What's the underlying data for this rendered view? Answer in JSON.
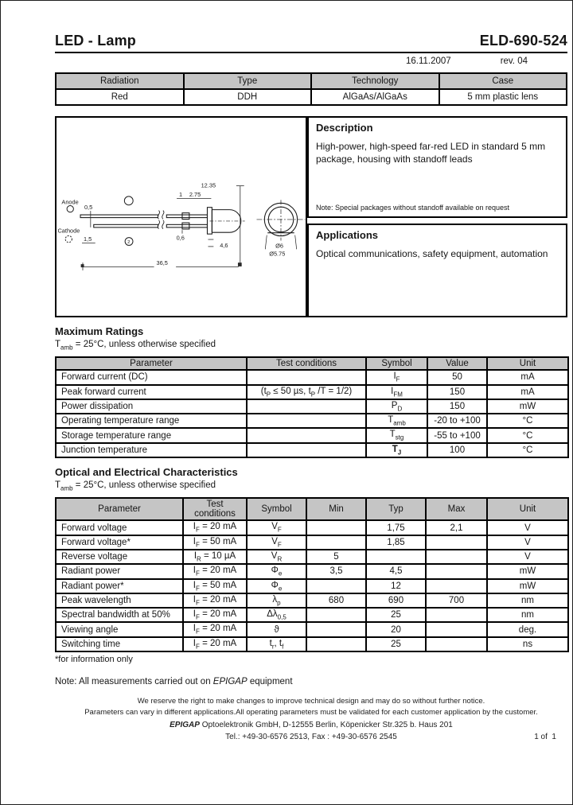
{
  "header": {
    "product_family": "LED - Lamp",
    "part_number": "ELD-690-524",
    "date": "16.11.2007",
    "revision": "rev. 04"
  },
  "info_table": {
    "headers": [
      "Radiation",
      "Type",
      "Technology",
      "Case"
    ],
    "row": {
      "radiation": "Red",
      "type": "DDH",
      "technology": "AlGaAs/AlGaAs",
      "case": "5 mm plastic lens"
    }
  },
  "description": {
    "title": "Description",
    "body": "High-power, high-speed far-red LED in standard 5 mm package, housing with standoff leads",
    "note": "Note: Special packages without standoff available on request"
  },
  "applications": {
    "title": "Applications",
    "body": "Optical communications, safety equipment, automation"
  },
  "diagram": {
    "anode_label": "Anode",
    "cathode_label": "Cathode",
    "marker_2": "2",
    "dims": {
      "lead_inset": "0,5",
      "cathode_inset": "1,5",
      "lead_width": "0,6",
      "standoff": "1",
      "pitch": "2.75",
      "height": "12.35",
      "body": "4,6",
      "lead_length": "36,5",
      "dia_outer": "Ø6",
      "dia_body": "Ø5.75"
    }
  },
  "max_ratings": {
    "title": "Maximum Ratings",
    "condition": [
      {
        "t": "T"
      },
      {
        "t": "amb",
        "s": 1
      },
      {
        "t": " = 25°C, unless otherwise specified"
      }
    ],
    "headers": [
      "Parameter",
      "Test conditions",
      "Symbol",
      "Value",
      "Unit"
    ],
    "rows": [
      {
        "parameter": "Forward current (DC)",
        "test": "",
        "symbol": [
          {
            "t": "I"
          },
          {
            "t": "F",
            "s": 1
          }
        ],
        "value": "50",
        "unit": "mA"
      },
      {
        "parameter": "Peak forward current",
        "test": [
          {
            "t": "(t"
          },
          {
            "t": "P",
            "s": 1
          },
          {
            "t": " ≤ 50 µs, t"
          },
          {
            "t": "P",
            "s": 1
          },
          {
            "t": " /T = 1/2)"
          }
        ],
        "symbol": [
          {
            "t": "I"
          },
          {
            "t": "FM",
            "s": 1
          }
        ],
        "value": "150",
        "unit": "mA"
      },
      {
        "parameter": "Power dissipation",
        "test": "",
        "symbol": [
          {
            "t": "P"
          },
          {
            "t": "D",
            "s": 1
          }
        ],
        "value": "150",
        "unit": "mW"
      },
      {
        "parameter": "Operating temperature range",
        "test": "",
        "symbol": [
          {
            "t": "T"
          },
          {
            "t": "amb",
            "s": 1
          }
        ],
        "value": "-20 to +100",
        "unit": "°C"
      },
      {
        "parameter": "Storage temperature range",
        "test": "",
        "symbol": [
          {
            "t": "T"
          },
          {
            "t": "stg",
            "s": 1
          }
        ],
        "value": "-55 to +100",
        "unit": "°C"
      },
      {
        "parameter": "Junction temperature",
        "test": "",
        "symbol": [
          {
            "t": "T",
            "b": 1
          },
          {
            "t": "J",
            "s": 1,
            "b": 1
          }
        ],
        "value": "100",
        "unit": "°C"
      }
    ]
  },
  "characteristics": {
    "title": "Optical and Electrical Characteristics",
    "condition": [
      {
        "t": "T"
      },
      {
        "t": "amb",
        "s": 1
      },
      {
        "t": " = 25°C, unless otherwise specified"
      }
    ],
    "headers": [
      "Parameter",
      "Test conditions",
      "Symbol",
      "Min",
      "Typ",
      "Max",
      "Unit"
    ],
    "rows": [
      {
        "parameter": "Forward voltage",
        "test": [
          {
            "t": "I"
          },
          {
            "t": "F",
            "s": 1
          },
          {
            "t": " = 20 mA"
          }
        ],
        "symbol": [
          {
            "t": "V"
          },
          {
            "t": "F",
            "s": 1
          }
        ],
        "min": "",
        "typ": "1,75",
        "max": "2,1",
        "unit": "V"
      },
      {
        "parameter": "Forward voltage*",
        "test": [
          {
            "t": "I"
          },
          {
            "t": "F",
            "s": 1
          },
          {
            "t": " = 50 mA"
          }
        ],
        "symbol": [
          {
            "t": "V"
          },
          {
            "t": "F",
            "s": 1
          }
        ],
        "min": "",
        "typ": "1,85",
        "max": "",
        "unit": "V"
      },
      {
        "parameter": "Reverse voltage",
        "test": [
          {
            "t": "I"
          },
          {
            "t": "R",
            "s": 1
          },
          {
            "t": " = 10 µA"
          }
        ],
        "symbol": [
          {
            "t": "V"
          },
          {
            "t": "R",
            "s": 1
          }
        ],
        "min": "5",
        "typ": "",
        "max": "",
        "unit": "V"
      },
      {
        "parameter": "Radiant power",
        "test": [
          {
            "t": "I"
          },
          {
            "t": "F",
            "s": 1
          },
          {
            "t": " = 20 mA"
          }
        ],
        "symbol": [
          {
            "t": "Φ"
          },
          {
            "t": "e",
            "s": 1
          }
        ],
        "min": "3,5",
        "typ": "4,5",
        "max": "",
        "unit": "mW"
      },
      {
        "parameter": "Radiant power*",
        "test": [
          {
            "t": "I"
          },
          {
            "t": "F",
            "s": 1
          },
          {
            "t": " = 50 mA"
          }
        ],
        "symbol": [
          {
            "t": "Φ"
          },
          {
            "t": "e",
            "s": 1
          }
        ],
        "min": "",
        "typ": "12",
        "max": "",
        "unit": "mW"
      },
      {
        "parameter": "Peak wavelength",
        "test": [
          {
            "t": "I"
          },
          {
            "t": "F",
            "s": 1
          },
          {
            "t": " = 20 mA"
          }
        ],
        "symbol": [
          {
            "t": "λ"
          },
          {
            "t": "p",
            "s": 1
          }
        ],
        "min": "680",
        "typ": "690",
        "max": "700",
        "unit": "nm"
      },
      {
        "parameter": "Spectral bandwidth at 50%",
        "test": [
          {
            "t": "I"
          },
          {
            "t": "F",
            "s": 1
          },
          {
            "t": " = 20 mA"
          }
        ],
        "symbol": [
          {
            "t": "Δλ"
          },
          {
            "t": "0,5",
            "s": 1
          }
        ],
        "min": "",
        "typ": "25",
        "max": "",
        "unit": "nm"
      },
      {
        "parameter": "Viewing angle",
        "test": [
          {
            "t": "I"
          },
          {
            "t": "F",
            "s": 1
          },
          {
            "t": " = 20 mA"
          }
        ],
        "symbol": [
          {
            "t": "ϑ"
          }
        ],
        "min": "",
        "typ": "20",
        "max": "",
        "unit": "deg."
      },
      {
        "parameter": "Switching time",
        "test": [
          {
            "t": "I"
          },
          {
            "t": "F",
            "s": 1
          },
          {
            "t": " = 20 mA"
          }
        ],
        "symbol": [
          {
            "t": "t"
          },
          {
            "t": "r",
            "s": 1
          },
          {
            "t": ", t"
          },
          {
            "t": "f",
            "s": 1
          }
        ],
        "min": "",
        "typ": "25",
        "max": "",
        "unit": "ns"
      }
    ]
  },
  "footnote": "*for information only",
  "note": {
    "prefix": "Note: All measurements carried out on ",
    "brand": "EPIGAP",
    "suffix": " equipment"
  },
  "footer": {
    "line1": "We reserve the right to make changes to improve technical design and may do so without further notice.",
    "line2": "Parameters can vary in different applications.All operating parameters must be validated for each customer application by the customer.",
    "company": "EPIGAP",
    "company_rest": " Optoelektronik GmbH, D-12555 Berlin, Köpenicker Str.325 b. Haus 201",
    "tel": "Tel.: +49-30-6576 2513, Fax : +49-30-6576 2545",
    "page": "1 of  1"
  }
}
